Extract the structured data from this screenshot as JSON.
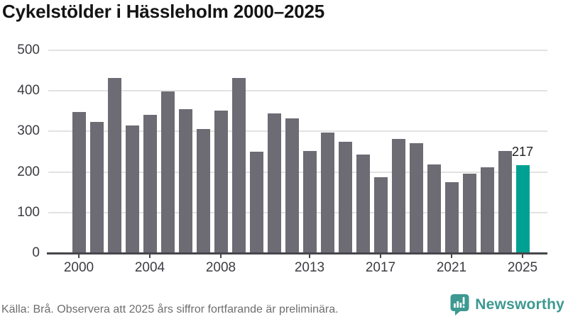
{
  "chart_data": {
    "type": "bar",
    "title": "Cykelstölder i Hässleholm 2000–2025",
    "categories": [
      2000,
      2001,
      2002,
      2003,
      2004,
      2005,
      2006,
      2007,
      2008,
      2009,
      2010,
      2011,
      2012,
      2013,
      2014,
      2015,
      2016,
      2017,
      2018,
      2019,
      2020,
      2021,
      2022,
      2023,
      2024,
      2025
    ],
    "values": [
      348,
      323,
      432,
      315,
      341,
      399,
      355,
      306,
      351,
      432,
      250,
      345,
      333,
      251,
      298,
      275,
      243,
      187,
      282,
      271,
      218,
      175,
      196,
      212,
      252,
      217
    ],
    "highlight": {
      "category": 2025,
      "value": 217,
      "label": "217"
    },
    "ylim": [
      0,
      500
    ],
    "yticks": [
      0,
      100,
      200,
      300,
      400,
      500
    ],
    "xticks": [
      2000,
      2004,
      2008,
      2013,
      2017,
      2021,
      2025
    ],
    "grid": true,
    "legend_position": "none",
    "colors": {
      "bar": "#6d6c74",
      "highlight": "#00a093",
      "grid": "#e2e2e2",
      "axis": "#46464c",
      "tick_label": "#3c3c42"
    }
  },
  "footer": {
    "source": "Källa: Brå. Observera att 2025 års siffror fortfarande är preliminära.",
    "brand": "Newsworthy",
    "brand_color": "#3d9991"
  }
}
